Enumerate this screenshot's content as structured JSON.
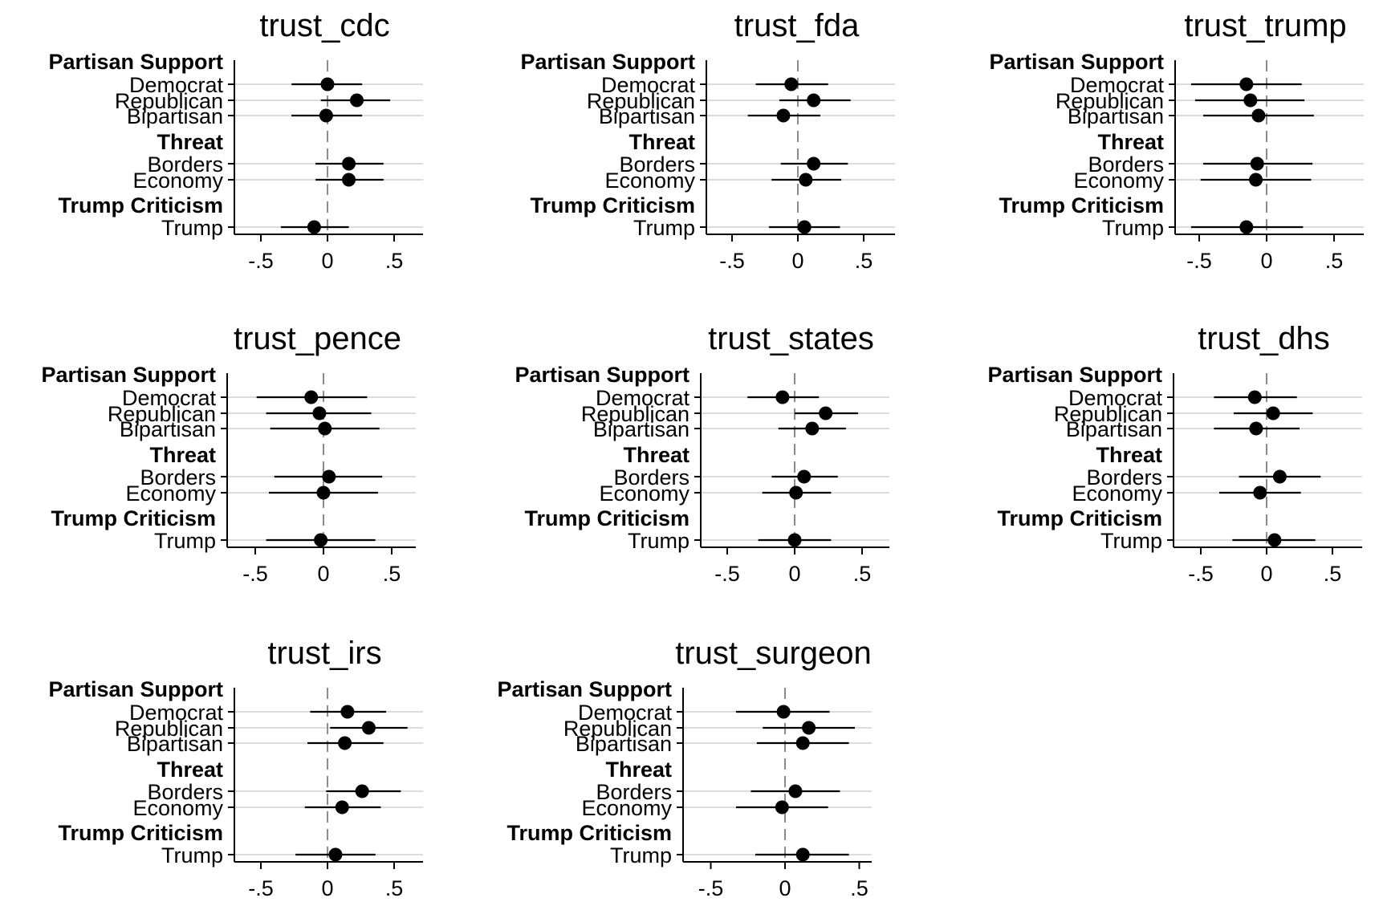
{
  "chart_data": {
    "type": "coefficient_plot",
    "xlim": [
      -0.7,
      0.7
    ],
    "x_ticks": [
      -0.5,
      0,
      0.5
    ],
    "x_tick_labels": [
      "-.5",
      "0",
      ".5"
    ],
    "zero_reference": 0,
    "grid": "horizontal",
    "row_labels": [
      "Democrat",
      "Republican",
      "Bipartisan",
      "Borders",
      "Economy",
      "Trump"
    ],
    "groups": [
      {
        "label": "Partisan Support",
        "rows": [
          "Democrat",
          "Republican",
          "Bipartisan"
        ]
      },
      {
        "label": "Threat",
        "rows": [
          "Borders",
          "Economy"
        ]
      },
      {
        "label": "Trump Criticism",
        "rows": [
          "Trump"
        ]
      }
    ],
    "panels": [
      {
        "title": "trust_cdc",
        "estimates": [
          {
            "row": "Democrat",
            "estimate": 0.0,
            "lo": -0.27,
            "hi": 0.26
          },
          {
            "row": "Republican",
            "estimate": 0.22,
            "lo": -0.05,
            "hi": 0.47
          },
          {
            "row": "Bipartisan",
            "estimate": -0.01,
            "lo": -0.27,
            "hi": 0.26
          },
          {
            "row": "Borders",
            "estimate": 0.16,
            "lo": -0.09,
            "hi": 0.42
          },
          {
            "row": "Economy",
            "estimate": 0.16,
            "lo": -0.09,
            "hi": 0.42
          },
          {
            "row": "Trump",
            "estimate": -0.1,
            "lo": -0.35,
            "hi": 0.16
          }
        ]
      },
      {
        "title": "trust_fda",
        "estimates": [
          {
            "row": "Democrat",
            "estimate": -0.05,
            "lo": -0.32,
            "hi": 0.23
          },
          {
            "row": "Republican",
            "estimate": 0.12,
            "lo": -0.14,
            "hi": 0.4
          },
          {
            "row": "Bipartisan",
            "estimate": -0.11,
            "lo": -0.38,
            "hi": 0.17
          },
          {
            "row": "Borders",
            "estimate": 0.12,
            "lo": -0.13,
            "hi": 0.38
          },
          {
            "row": "Economy",
            "estimate": 0.06,
            "lo": -0.2,
            "hi": 0.33
          },
          {
            "row": "Trump",
            "estimate": 0.05,
            "lo": -0.22,
            "hi": 0.32
          }
        ]
      },
      {
        "title": "trust_trump",
        "estimates": [
          {
            "row": "Democrat",
            "estimate": -0.15,
            "lo": -0.56,
            "hi": 0.26
          },
          {
            "row": "Republican",
            "estimate": -0.12,
            "lo": -0.53,
            "hi": 0.28
          },
          {
            "row": "Bipartisan",
            "estimate": -0.06,
            "lo": -0.47,
            "hi": 0.35
          },
          {
            "row": "Borders",
            "estimate": -0.07,
            "lo": -0.47,
            "hi": 0.34
          },
          {
            "row": "Economy",
            "estimate": -0.08,
            "lo": -0.49,
            "hi": 0.33
          },
          {
            "row": "Trump",
            "estimate": -0.15,
            "lo": -0.56,
            "hi": 0.27
          }
        ]
      },
      {
        "title": "trust_pence",
        "estimates": [
          {
            "row": "Democrat",
            "estimate": -0.09,
            "lo": -0.49,
            "hi": 0.32
          },
          {
            "row": "Republican",
            "estimate": -0.03,
            "lo": -0.42,
            "hi": 0.35
          },
          {
            "row": "Bipartisan",
            "estimate": 0.01,
            "lo": -0.39,
            "hi": 0.41
          },
          {
            "row": "Borders",
            "estimate": 0.04,
            "lo": -0.36,
            "hi": 0.43
          },
          {
            "row": "Economy",
            "estimate": 0.0,
            "lo": -0.4,
            "hi": 0.4
          },
          {
            "row": "Trump",
            "estimate": -0.02,
            "lo": -0.42,
            "hi": 0.38
          }
        ]
      },
      {
        "title": "trust_states",
        "estimates": [
          {
            "row": "Democrat",
            "estimate": -0.09,
            "lo": -0.35,
            "hi": 0.18
          },
          {
            "row": "Republican",
            "estimate": 0.23,
            "lo": 0.0,
            "hi": 0.47
          },
          {
            "row": "Bipartisan",
            "estimate": 0.13,
            "lo": -0.12,
            "hi": 0.38
          },
          {
            "row": "Borders",
            "estimate": 0.07,
            "lo": -0.17,
            "hi": 0.32
          },
          {
            "row": "Economy",
            "estimate": 0.01,
            "lo": -0.24,
            "hi": 0.27
          },
          {
            "row": "Trump",
            "estimate": 0.0,
            "lo": -0.27,
            "hi": 0.27
          }
        ]
      },
      {
        "title": "trust_dhs",
        "estimates": [
          {
            "row": "Democrat",
            "estimate": -0.09,
            "lo": -0.4,
            "hi": 0.23
          },
          {
            "row": "Republican",
            "estimate": 0.05,
            "lo": -0.25,
            "hi": 0.35
          },
          {
            "row": "Bipartisan",
            "estimate": -0.08,
            "lo": -0.4,
            "hi": 0.25
          },
          {
            "row": "Borders",
            "estimate": 0.1,
            "lo": -0.21,
            "hi": 0.41
          },
          {
            "row": "Economy",
            "estimate": -0.05,
            "lo": -0.36,
            "hi": 0.26
          },
          {
            "row": "Trump",
            "estimate": 0.06,
            "lo": -0.26,
            "hi": 0.37
          }
        ]
      },
      {
        "title": "trust_irs",
        "estimates": [
          {
            "row": "Democrat",
            "estimate": 0.15,
            "lo": -0.13,
            "hi": 0.44
          },
          {
            "row": "Republican",
            "estimate": 0.31,
            "lo": 0.02,
            "hi": 0.6
          },
          {
            "row": "Bipartisan",
            "estimate": 0.13,
            "lo": -0.15,
            "hi": 0.42
          },
          {
            "row": "Borders",
            "estimate": 0.26,
            "lo": -0.01,
            "hi": 0.55
          },
          {
            "row": "Economy",
            "estimate": 0.11,
            "lo": -0.17,
            "hi": 0.4
          },
          {
            "row": "Trump",
            "estimate": 0.06,
            "lo": -0.24,
            "hi": 0.36
          }
        ]
      },
      {
        "title": "trust_surgeon",
        "estimates": [
          {
            "row": "Democrat",
            "estimate": -0.01,
            "lo": -0.33,
            "hi": 0.3
          },
          {
            "row": "Republican",
            "estimate": 0.16,
            "lo": -0.15,
            "hi": 0.47
          },
          {
            "row": "Bipartisan",
            "estimate": 0.12,
            "lo": -0.19,
            "hi": 0.43
          },
          {
            "row": "Borders",
            "estimate": 0.07,
            "lo": -0.23,
            "hi": 0.37
          },
          {
            "row": "Economy",
            "estimate": -0.02,
            "lo": -0.33,
            "hi": 0.29
          },
          {
            "row": "Trump",
            "estimate": 0.12,
            "lo": -0.2,
            "hi": 0.43
          }
        ]
      }
    ]
  }
}
